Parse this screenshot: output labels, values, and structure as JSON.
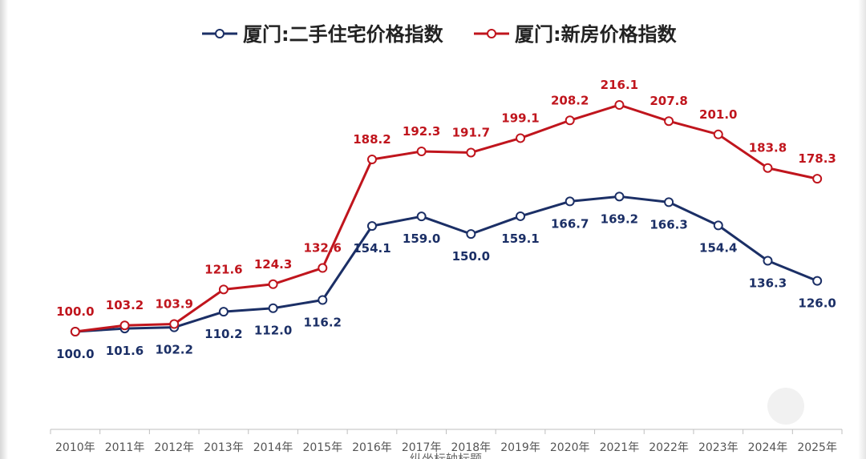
{
  "colors": {
    "series1": "#1b2f66",
    "series2": "#c0151d",
    "axis": "#bfbfbf",
    "label_blue": "#1b2f66",
    "label_red": "#c0151d"
  },
  "chart_data": {
    "type": "line",
    "title": "",
    "xlabel": "纵坐标轴标题",
    "ylabel": "",
    "categories": [
      "2010年",
      "2011年",
      "2012年",
      "2013年",
      "2014年",
      "2015年",
      "2016年",
      "2017年",
      "2018年",
      "2019年",
      "2020年",
      "2021年",
      "2022年",
      "2023年",
      "2024年",
      "2025年"
    ],
    "series": [
      {
        "name": "厦门:二手住宅价格指数",
        "values": [
          100.0,
          101.6,
          102.2,
          110.2,
          112.0,
          116.2,
          154.1,
          159.0,
          150.0,
          159.1,
          166.7,
          169.2,
          166.3,
          154.4,
          136.3,
          126.0
        ],
        "labels": [
          "100.0",
          "101.6",
          "102.2",
          "110.2",
          "112.0",
          "116.2",
          "154.1",
          "159.0",
          "150.0",
          "159.1",
          "166.7",
          "169.2",
          "166.3",
          "154.4",
          "136.3",
          "126.0"
        ],
        "color": "#1b2f66"
      },
      {
        "name": "厦门:新房价格指数",
        "values": [
          100.0,
          103.2,
          103.9,
          121.6,
          124.3,
          132.6,
          188.2,
          192.3,
          191.7,
          199.1,
          208.2,
          216.1,
          207.8,
          201.0,
          183.8,
          178.3
        ],
        "labels": [
          "100.0",
          "103.2",
          "103.9",
          "121.6",
          "124.3",
          "132.6",
          "188.2",
          "192.3",
          "191.7",
          "199.1",
          "208.2",
          "216.1",
          "207.8",
          "201.0",
          "183.8",
          "178.3"
        ],
        "color": "#c0151d"
      }
    ],
    "legend": "top",
    "grid": false
  }
}
